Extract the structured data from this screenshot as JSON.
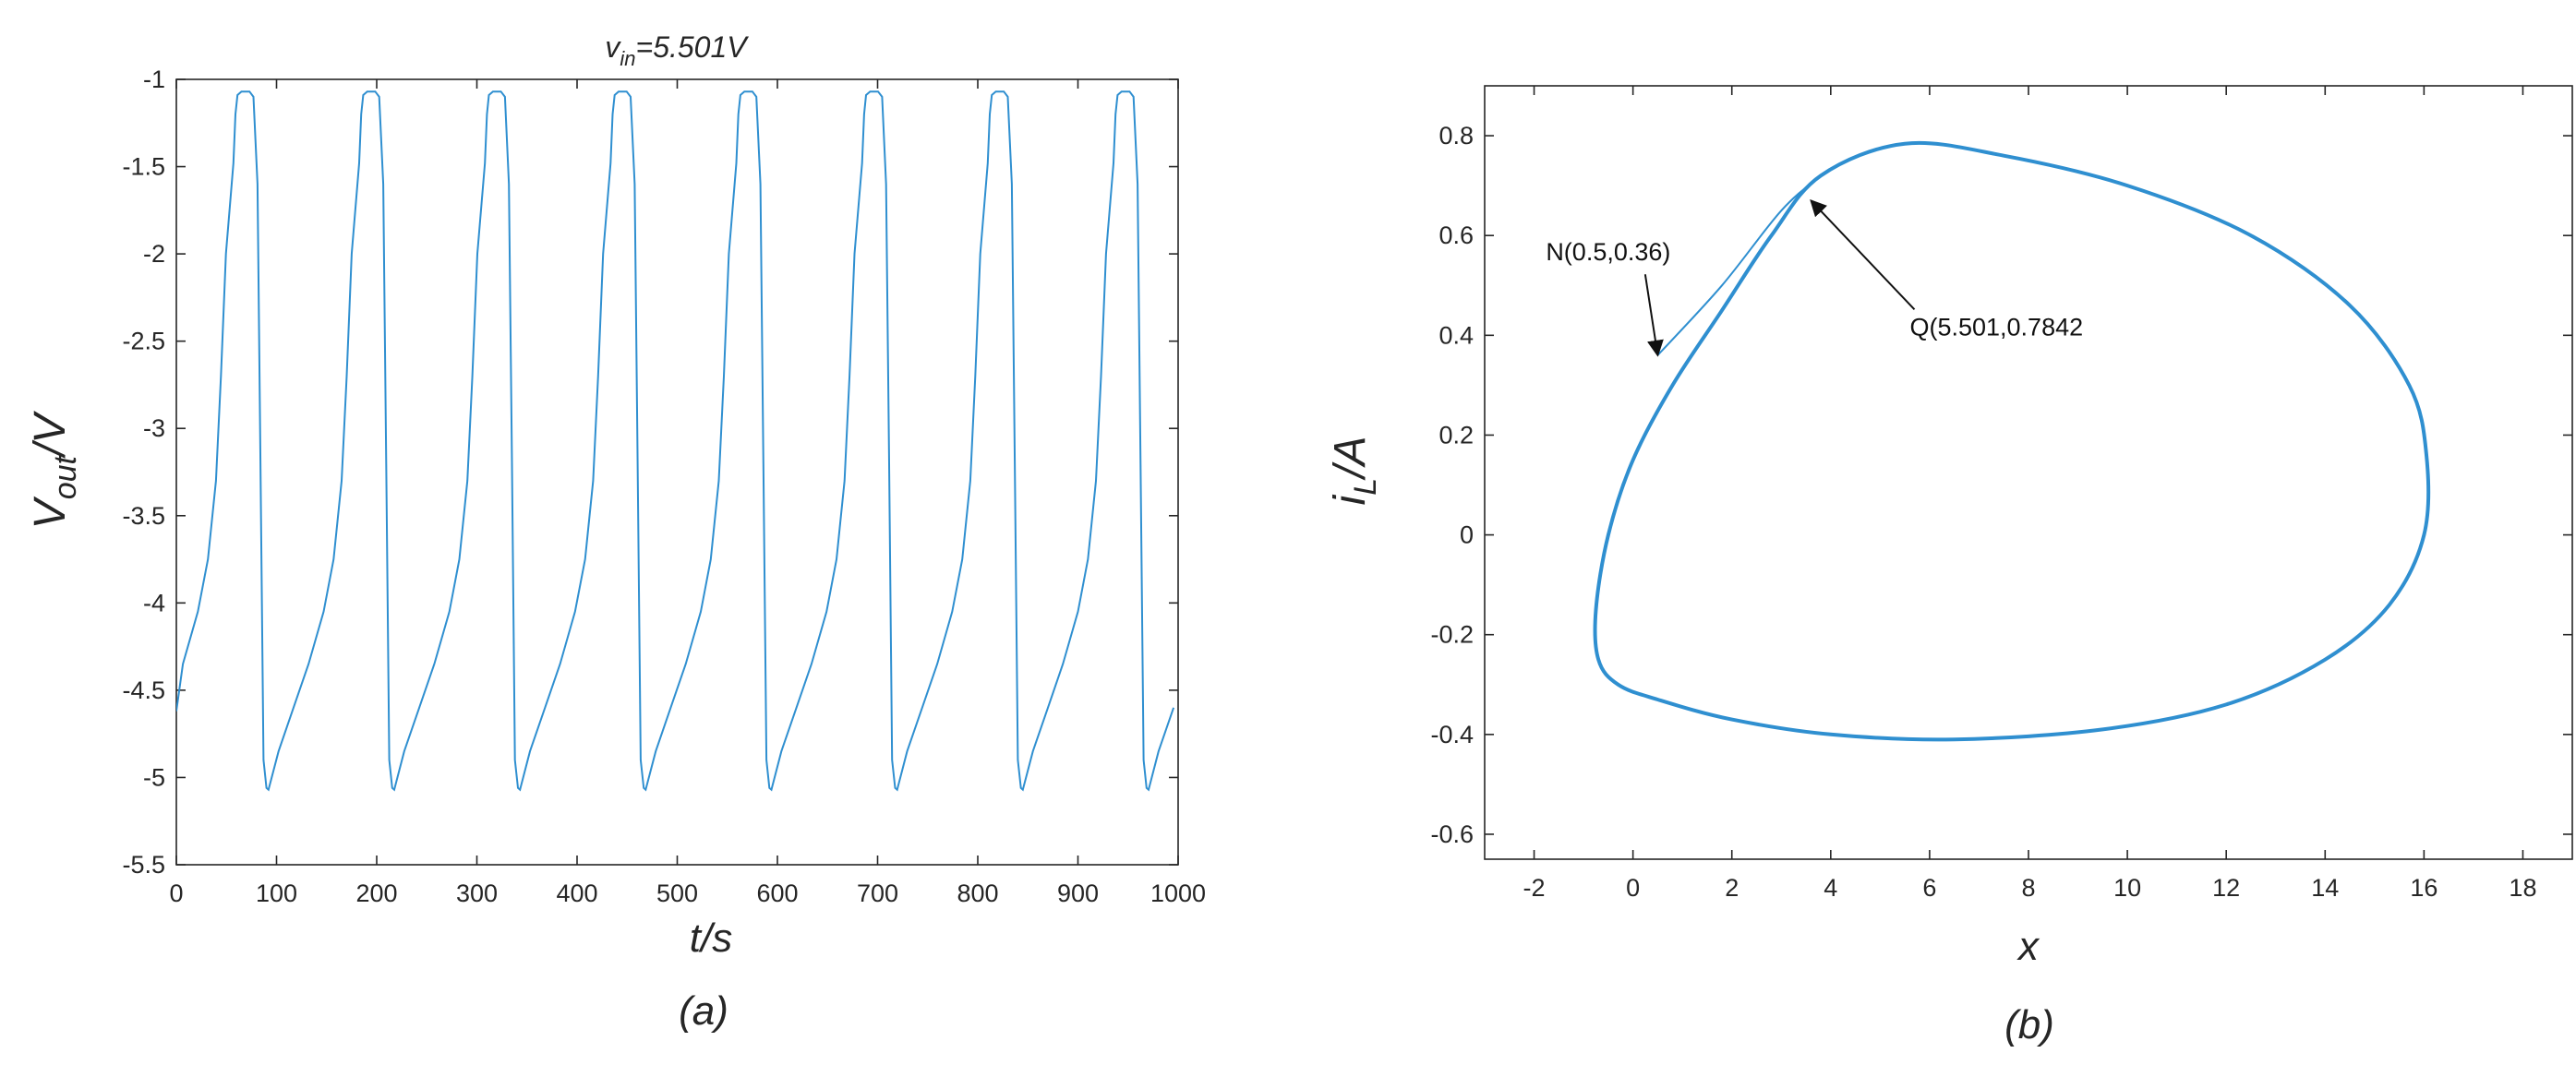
{
  "colors": {
    "trace": "#2f8fd0",
    "axis": "#262626"
  },
  "chart_data": [
    {
      "type": "line",
      "panel_label": "(a)",
      "title": {
        "main": "v",
        "sub": "in",
        "rest": "=5.501V"
      },
      "xlabel": "t/s",
      "ylabel": {
        "main": "V",
        "sub": "out",
        "rest": "/V"
      },
      "xlim": [
        0,
        1000
      ],
      "ylim": [
        -5.5,
        -1
      ],
      "xticks": [
        0,
        100,
        200,
        300,
        400,
        500,
        600,
        700,
        800,
        900,
        1000
      ],
      "yticks": [
        -5.5,
        -5,
        -4.5,
        -4,
        -3.5,
        -3,
        -2.5,
        -2,
        -1.5,
        -1
      ],
      "grid": false,
      "series": [
        {
          "period": 125.5,
          "first_peak_start": 57,
          "shape": [
            [
              0,
              -1.48
            ],
            [
              2,
              -1.2
            ],
            [
              4,
              -1.09
            ],
            [
              8,
              -1.07
            ],
            [
              16,
              -1.07
            ],
            [
              20,
              -1.1
            ],
            [
              24,
              -1.6
            ],
            [
              27,
              -3.2
            ],
            [
              30,
              -4.9
            ],
            [
              33,
              -5.06
            ],
            [
              35,
              -5.07
            ],
            [
              45,
              -4.85
            ],
            [
              60,
              -4.6
            ],
            [
              75,
              -4.35
            ],
            [
              90,
              -4.05
            ],
            [
              100,
              -3.75
            ],
            [
              108,
              -3.3
            ],
            [
              113,
              -2.7
            ],
            [
              118,
              -2.0
            ],
            [
              125.5,
              -1.48
            ]
          ],
          "x_start_value": -4.62
        }
      ]
    },
    {
      "type": "line",
      "panel_label": "(b)",
      "xlabel": "x",
      "ylabel": {
        "main": "i",
        "sub": "L",
        "rest": "/A"
      },
      "xlim": [
        -3,
        19
      ],
      "ylim": [
        -0.65,
        0.9
      ],
      "xticks": [
        -2,
        0,
        2,
        4,
        6,
        8,
        10,
        12,
        14,
        16,
        18
      ],
      "yticks": [
        -0.6,
        -0.4,
        -0.2,
        0,
        0.2,
        0.4,
        0.6,
        0.8
      ],
      "grid": false,
      "series": [
        {
          "initial_segment": [
            [
              0.5,
              0.36
            ],
            [
              1.8,
              0.5
            ],
            [
              3.0,
              0.65
            ],
            [
              3.8,
              0.72
            ]
          ],
          "loop": [
            [
              3.8,
              0.72
            ],
            [
              5.5,
              0.784
            ],
            [
              7.5,
              0.76
            ],
            [
              10,
              0.7
            ],
            [
              12.5,
              0.6
            ],
            [
              14.5,
              0.46
            ],
            [
              15.7,
              0.3
            ],
            [
              16.05,
              0.16
            ],
            [
              16.0,
              0.0
            ],
            [
              15.3,
              -0.14
            ],
            [
              14.0,
              -0.25
            ],
            [
              12.0,
              -0.34
            ],
            [
              9.5,
              -0.39
            ],
            [
              6.5,
              -0.41
            ],
            [
              4.0,
              -0.4
            ],
            [
              2.0,
              -0.37
            ],
            [
              0.5,
              -0.33
            ],
            [
              -0.3,
              -0.3
            ],
            [
              -0.7,
              -0.25
            ],
            [
              -0.75,
              -0.15
            ],
            [
              -0.5,
              0.0
            ],
            [
              0.0,
              0.15
            ],
            [
              0.8,
              0.3
            ],
            [
              1.8,
              0.45
            ],
            [
              2.8,
              0.6
            ],
            [
              3.8,
              0.72
            ]
          ]
        }
      ],
      "annotations": [
        {
          "text": "N(0.5,0.36)",
          "point": [
            0.5,
            0.36
          ],
          "text_at": [
            -0.5,
            0.55
          ]
        },
        {
          "text": "Q(5.501,0.7842",
          "point": [
            3.6,
            0.67
          ],
          "text_at": [
            5.6,
            0.4
          ]
        }
      ]
    }
  ]
}
